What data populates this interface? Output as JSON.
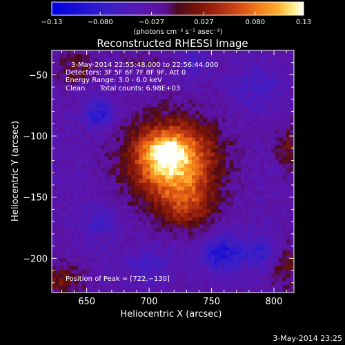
{
  "chart_data": {
    "type": "heatmap",
    "title": "Reconstructed RHESSI Image",
    "xlabel": "Heliocentric X (arcsec)",
    "ylabel": "Heliocentric Y (arcsec)",
    "xlim": [
      622,
      816
    ],
    "ylim": [
      -228,
      -30
    ],
    "x_ticks": [
      650,
      700,
      750,
      800
    ],
    "y_ticks": [
      -50,
      -100,
      -150,
      -200
    ],
    "colorbar": {
      "range": [
        -0.13,
        0.13
      ],
      "tick_values": [
        -0.13,
        -0.08,
        -0.027,
        0.027,
        0.08,
        0.13
      ],
      "tick_labels": [
        "−0.13",
        "−0.080",
        "−0.027",
        "0.027",
        "0.080",
        "0.13"
      ],
      "unit_label": "(photons cm⁻² s⁻¹ asec⁻²)"
    },
    "annotations": [
      "3-May-2014 22:55:48.000 to 22:56:44.000",
      "Detectors: 3F 5F 6F 7F 8F 9F, Att 0",
      "Energy Range: 3.0 - 6.0 keV",
      "Clean",
      "Total counts: 6.98E+03"
    ],
    "peak_label": "Position of Peak = [722,−130]",
    "peak": [
      722,
      -130
    ],
    "sources": [
      {
        "x": 718,
        "y": -120,
        "sx": 24,
        "sy": 22,
        "amp": 0.155
      },
      {
        "x": 730,
        "y": -158,
        "sx": 16,
        "sy": 14,
        "amp": 0.06
      },
      {
        "x": 712,
        "y": -112,
        "sx": 10,
        "sy": 8,
        "amp": 0.05
      },
      {
        "x": 640,
        "y": -45,
        "sx": 12,
        "sy": 10,
        "amp": 0.035
      },
      {
        "x": 628,
        "y": -218,
        "sx": 14,
        "sy": 10,
        "amp": 0.045
      },
      {
        "x": 812,
        "y": -110,
        "sx": 8,
        "sy": 14,
        "amp": 0.04
      },
      {
        "x": 810,
        "y": -205,
        "sx": 10,
        "sy": 14,
        "amp": 0.04
      },
      {
        "x": 700,
        "y": -40,
        "sx": 18,
        "sy": 6,
        "amp": 0.02
      },
      {
        "x": 660,
        "y": -82,
        "sx": 8,
        "sy": 8,
        "amp": -0.06
      },
      {
        "x": 758,
        "y": -196,
        "sx": 12,
        "sy": 10,
        "amp": -0.065
      },
      {
        "x": 790,
        "y": -195,
        "sx": 10,
        "sy": 10,
        "amp": -0.045
      },
      {
        "x": 700,
        "y": -205,
        "sx": 12,
        "sy": 8,
        "amp": -0.035
      },
      {
        "x": 660,
        "y": -170,
        "sx": 10,
        "sy": 10,
        "amp": -0.03
      },
      {
        "x": 785,
        "y": -60,
        "sx": 14,
        "sy": 12,
        "amp": -0.03
      },
      {
        "x": 735,
        "y": -40,
        "sx": 10,
        "sy": 8,
        "amp": -0.025
      }
    ],
    "baseline": -0.032,
    "colormap_stops": [
      [
        0.0,
        "#0000e0"
      ],
      [
        0.22,
        "#3a1fc8"
      ],
      [
        0.36,
        "#5a16b0"
      ],
      [
        0.45,
        "#5c1098"
      ],
      [
        0.5,
        "#4a0a1a"
      ],
      [
        0.58,
        "#7a1408"
      ],
      [
        0.66,
        "#a52810"
      ],
      [
        0.74,
        "#d24a14"
      ],
      [
        0.82,
        "#f37a18"
      ],
      [
        0.9,
        "#ffb030"
      ],
      [
        0.96,
        "#fff08a"
      ],
      [
        1.0,
        "#ffffff"
      ]
    ]
  },
  "footer": {
    "timestamp": "3-May-2014 23:25"
  }
}
